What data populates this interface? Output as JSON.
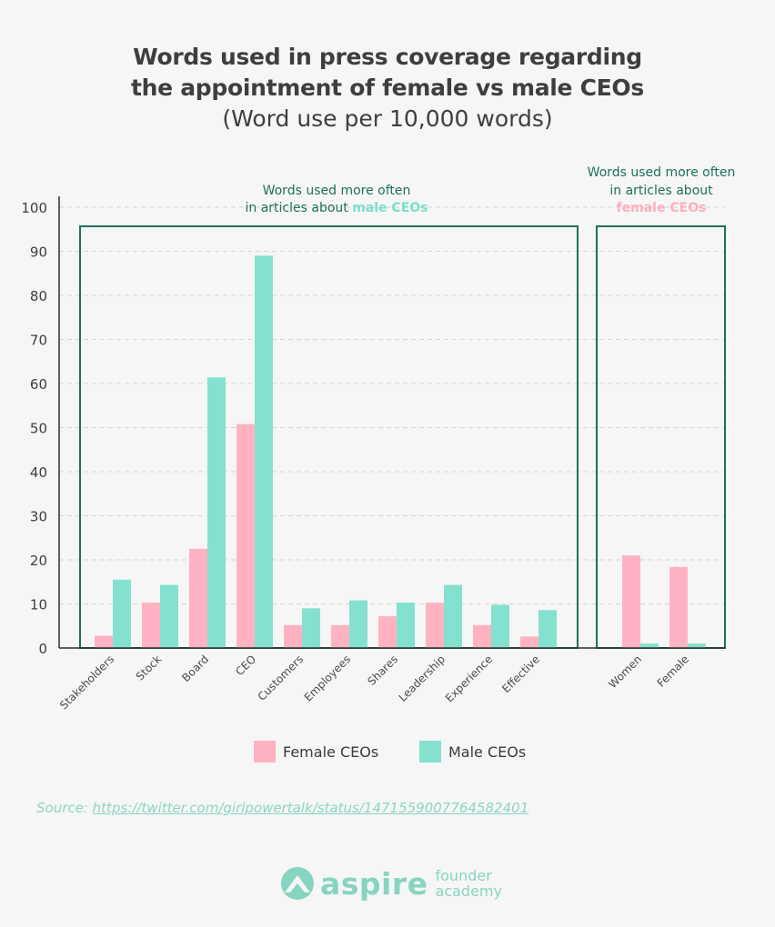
{
  "header": {
    "title_line1": "Words used in press coverage regarding",
    "title_line2": "the appointment of female vs male CEOs",
    "subtitle": "(Word use per 10,000 words)"
  },
  "chart_data": {
    "type": "bar",
    "title": "Words used in press coverage regarding the appointment of female vs male CEOs",
    "subtitle": "(Word use per 10,000 words)",
    "ylim": [
      0,
      100
    ],
    "yticks": [
      0,
      10,
      20,
      30,
      40,
      50,
      60,
      70,
      80,
      90,
      100
    ],
    "grid": true,
    "categories": [
      "Stakeholders",
      "Stock",
      "Board",
      "CEO",
      "Customers",
      "Employees",
      "Shares",
      "Leadership",
      "Experience",
      "Effective",
      "Women",
      "Female"
    ],
    "series": [
      {
        "name": "Female CEOs",
        "color": "#ffb3c2",
        "values": [
          2.8,
          10.3,
          22.5,
          50.8,
          5.2,
          5.2,
          7.2,
          10.3,
          5.2,
          2.6,
          21.0,
          18.4
        ]
      },
      {
        "name": "Male CEOs",
        "color": "#85e1cf",
        "values": [
          15.5,
          14.3,
          61.4,
          89.0,
          9.0,
          10.8,
          10.3,
          14.3,
          9.8,
          8.6,
          1.0,
          1.0
        ]
      }
    ],
    "groups": [
      {
        "line1": "Words used more often",
        "line2_prefix": "in articles about ",
        "line2_highlight": "male CEOs",
        "highlight_color": "#7cdec8"
      },
      {
        "line1": "Words used more often",
        "line2_prefix": "in articles about",
        "line2_highlight": "female CEOs",
        "highlight_color": "#ffafc0"
      }
    ]
  },
  "legend": {
    "female": {
      "label": "Female CEOs",
      "color": "#ffb3c2"
    },
    "male": {
      "label": "Male CEOs",
      "color": "#85e1cf"
    }
  },
  "source": {
    "prefix": "Source: ",
    "link": "https://twitter.com/girlpowertalk/status/1471559007764582401"
  },
  "brand": {
    "word": "aspire",
    "sub1": "founder",
    "sub2": "academy",
    "icon": "mountain-icon"
  },
  "colors": {
    "frame": "#1f6f5c",
    "axis": "#2f2f2f"
  }
}
